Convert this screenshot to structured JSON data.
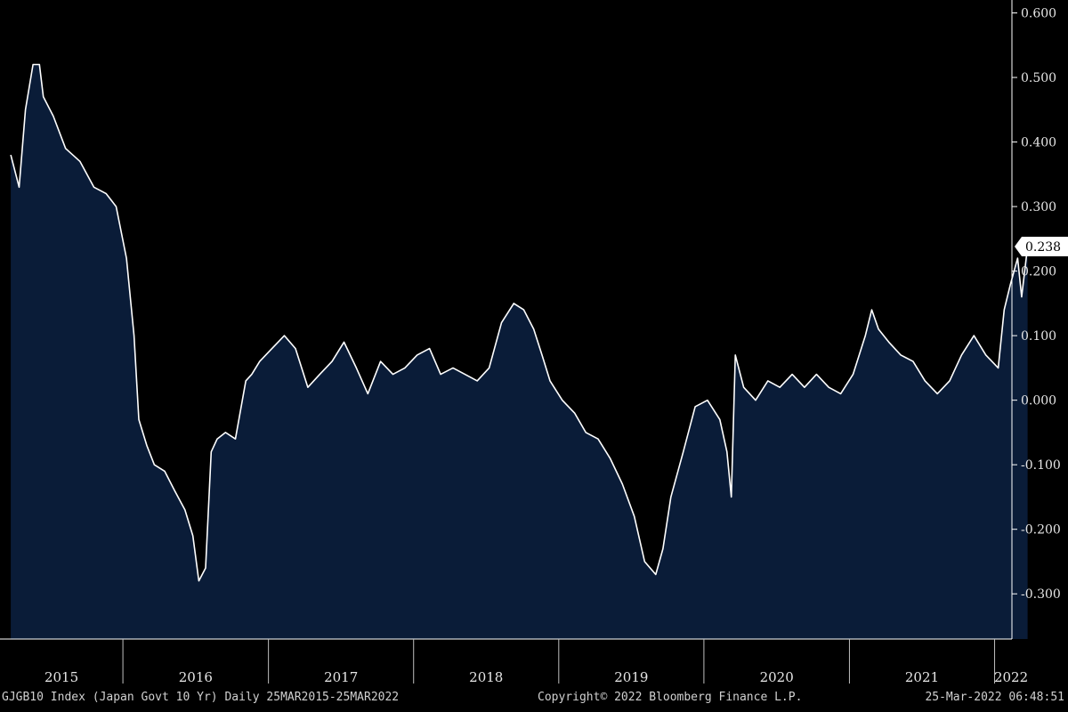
{
  "chart_data": {
    "type": "area",
    "ylim": [
      -0.37,
      0.62
    ],
    "y_ticks": [
      "0.600",
      "0.500",
      "0.400",
      "0.300",
      "0.200",
      "0.100",
      "0.000",
      "-0.100",
      "-0.200",
      "-0.300"
    ],
    "y_tick_values": [
      0.6,
      0.5,
      0.4,
      0.3,
      0.2,
      0.1,
      0.0,
      -0.1,
      -0.2,
      -0.3
    ],
    "x_labels": [
      "2015",
      "2016",
      "2017",
      "2018",
      "2019",
      "2020",
      "2021",
      "2022"
    ],
    "last_value_label": "0.238",
    "fill_color": "#0a1c38",
    "line_color": "#ffffff",
    "series": [
      {
        "x": [
          "2015-03-25",
          "2015-04-15",
          "2015-05-01",
          "2015-05-20",
          "2015-06-05",
          "2015-06-15",
          "2015-07-10",
          "2015-08-10",
          "2015-09-15",
          "2015-10-20",
          "2015-11-20",
          "2015-12-15",
          "2016-01-10",
          "2016-01-29",
          "2016-02-10",
          "2016-03-01",
          "2016-03-20",
          "2016-04-15",
          "2016-05-10",
          "2016-06-05",
          "2016-06-25",
          "2016-07-10",
          "2016-07-27",
          "2016-08-10",
          "2016-08-25",
          "2016-09-15",
          "2016-10-10",
          "2016-11-05",
          "2016-11-20",
          "2016-12-10",
          "2017-01-10",
          "2017-02-10",
          "2017-03-10",
          "2017-04-10",
          "2017-05-10",
          "2017-06-10",
          "2017-07-10",
          "2017-08-10",
          "2017-09-08",
          "2017-10-10",
          "2017-11-10",
          "2017-12-10",
          "2018-01-10",
          "2018-02-10",
          "2018-03-10",
          "2018-04-10",
          "2018-05-10",
          "2018-06-10",
          "2018-07-10",
          "2018-08-10",
          "2018-09-10",
          "2018-10-05",
          "2018-10-30",
          "2018-11-20",
          "2018-12-10",
          "2019-01-10",
          "2019-02-10",
          "2019-03-10",
          "2019-04-10",
          "2019-05-10",
          "2019-06-10",
          "2019-07-10",
          "2019-08-05",
          "2019-09-02",
          "2019-09-20",
          "2019-10-10",
          "2019-11-10",
          "2019-12-10",
          "2020-01-10",
          "2020-02-10",
          "2020-02-28",
          "2020-03-10",
          "2020-03-20",
          "2020-04-10",
          "2020-05-10",
          "2020-06-10",
          "2020-07-10",
          "2020-08-10",
          "2020-09-10",
          "2020-10-10",
          "2020-11-10",
          "2020-12-10",
          "2021-01-10",
          "2021-02-10",
          "2021-02-26",
          "2021-03-15",
          "2021-04-10",
          "2021-05-10",
          "2021-06-10",
          "2021-07-10",
          "2021-08-10",
          "2021-09-10",
          "2021-10-10",
          "2021-11-10",
          "2021-12-10",
          "2022-01-10",
          "2022-01-25",
          "2022-02-10",
          "2022-02-28",
          "2022-03-10",
          "2022-03-25"
        ],
        "y": [
          0.38,
          0.33,
          0.45,
          0.52,
          0.52,
          0.47,
          0.44,
          0.39,
          0.37,
          0.33,
          0.32,
          0.3,
          0.22,
          0.1,
          -0.03,
          -0.07,
          -0.1,
          -0.11,
          -0.14,
          -0.17,
          -0.21,
          -0.28,
          -0.26,
          -0.08,
          -0.06,
          -0.05,
          -0.06,
          0.03,
          0.04,
          0.06,
          0.08,
          0.1,
          0.08,
          0.02,
          0.04,
          0.06,
          0.09,
          0.05,
          0.01,
          0.06,
          0.04,
          0.05,
          0.07,
          0.08,
          0.04,
          0.05,
          0.04,
          0.03,
          0.05,
          0.12,
          0.15,
          0.14,
          0.11,
          0.07,
          0.03,
          0.0,
          -0.02,
          -0.05,
          -0.06,
          -0.09,
          -0.13,
          -0.18,
          -0.25,
          -0.27,
          -0.23,
          -0.15,
          -0.08,
          -0.01,
          0.0,
          -0.03,
          -0.08,
          -0.15,
          0.07,
          0.02,
          0.0,
          0.03,
          0.02,
          0.04,
          0.02,
          0.04,
          0.02,
          0.01,
          0.04,
          0.1,
          0.14,
          0.11,
          0.09,
          0.07,
          0.06,
          0.03,
          0.01,
          0.03,
          0.07,
          0.1,
          0.07,
          0.05,
          0.14,
          0.18,
          0.22,
          0.16,
          0.238
        ]
      }
    ]
  },
  "footer": {
    "left": "GJGB10 Index (Japan Govt 10 Yr)  Daily 25MAR2015-25MAR2022",
    "center": "Copyright© 2022 Bloomberg Finance L.P.",
    "right": "25-Mar-2022 06:48:51"
  }
}
